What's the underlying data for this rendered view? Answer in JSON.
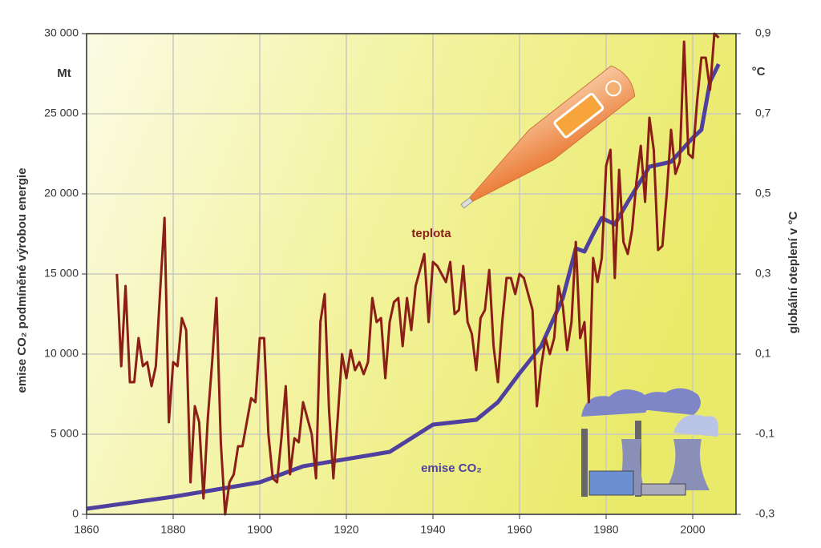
{
  "chart_data": {
    "type": "line",
    "y_label": "emise CO₂ podmíněné výrobou energie",
    "y2_label": "globální oteplení v °C",
    "y_unit": "Mt",
    "y2_unit": "°C",
    "xlim": [
      1860,
      2010
    ],
    "xticks": [
      1860,
      1880,
      1900,
      1920,
      1940,
      1960,
      1980,
      2000
    ],
    "ylim": [
      0,
      30000
    ],
    "yticks": [
      0,
      {
        "value": 5000,
        "label": "5 000"
      },
      {
        "value": 10000,
        "label": "10 000"
      },
      {
        "value": 15000,
        "label": "15 000"
      },
      {
        "value": 20000,
        "label": "20 000"
      },
      {
        "value": 25000,
        "label": "25 000"
      },
      {
        "value": 30000,
        "label": "30 000"
      }
    ],
    "y2lim": [
      -0.3,
      0.9
    ],
    "y2ticks": [
      {
        "value": -0.3,
        "label": "-0,3"
      },
      {
        "value": -0.1,
        "label": "-0,1"
      },
      {
        "value": 0.1,
        "label": "0,1"
      },
      {
        "value": 0.3,
        "label": "0,3"
      },
      {
        "value": 0.5,
        "label": "0,5"
      },
      {
        "value": 0.7,
        "label": "0,7"
      },
      {
        "value": 0.9,
        "label": "0,9"
      }
    ],
    "grid": true,
    "series": [
      {
        "name": "emise CO₂",
        "color": "#4f3f9e",
        "axis": "y",
        "x": [
          1860,
          1880,
          1900,
          1910,
          1930,
          1940,
          1950,
          1955,
          1960,
          1965,
          1970,
          1973,
          1975,
          1977,
          1979,
          1982,
          1985,
          1990,
          1995,
          2000,
          2002,
          2004,
          2006
        ],
        "values": [
          350,
          1100,
          2000,
          3000,
          3900,
          5600,
          5900,
          7000,
          8800,
          10500,
          13500,
          16600,
          16400,
          17500,
          18500,
          18100,
          19500,
          21700,
          22000,
          23500,
          24000,
          27000,
          28100
        ]
      },
      {
        "name": "teplota",
        "color": "#8b1f17",
        "axis": "y2",
        "x": [
          1867,
          1868,
          1869,
          1870,
          1871,
          1872,
          1873,
          1874,
          1875,
          1876,
          1877,
          1878,
          1879,
          1880,
          1881,
          1882,
          1883,
          1884,
          1885,
          1886,
          1887,
          1888,
          1889,
          1890,
          1891,
          1892,
          1893,
          1894,
          1895,
          1896,
          1897,
          1898,
          1899,
          1900,
          1901,
          1902,
          1903,
          1904,
          1905,
          1906,
          1907,
          1908,
          1909,
          1910,
          1911,
          1912,
          1913,
          1914,
          1915,
          1916,
          1917,
          1918,
          1919,
          1920,
          1921,
          1922,
          1923,
          1924,
          1925,
          1926,
          1927,
          1928,
          1929,
          1930,
          1931,
          1932,
          1933,
          1934,
          1935,
          1936,
          1937,
          1938,
          1939,
          1940,
          1941,
          1942,
          1943,
          1944,
          1945,
          1946,
          1947,
          1948,
          1949,
          1950,
          1951,
          1952,
          1953,
          1954,
          1955,
          1956,
          1957,
          1958,
          1959,
          1960,
          1961,
          1962,
          1963,
          1964,
          1965,
          1966,
          1967,
          1968,
          1969,
          1970,
          1971,
          1972,
          1973,
          1974,
          1975,
          1976,
          1977,
          1978,
          1979,
          1980,
          1981,
          1982,
          1983,
          1984,
          1985,
          1986,
          1987,
          1988,
          1989,
          1990,
          1991,
          1992,
          1993,
          1994,
          1995,
          1996,
          1997,
          1998,
          1999,
          2000,
          2001,
          2002,
          2003,
          2004,
          2005,
          2006
        ],
        "values": [
          0.3,
          0.07,
          0.27,
          0.03,
          0.03,
          0.14,
          0.07,
          0.08,
          0.02,
          0.07,
          0.26,
          0.44,
          -0.07,
          0.08,
          0.07,
          0.19,
          0.16,
          -0.22,
          -0.03,
          -0.07,
          -0.26,
          -0.06,
          0.08,
          0.24,
          -0.12,
          -0.3,
          -0.22,
          -0.2,
          -0.13,
          -0.13,
          -0.07,
          -0.01,
          -0.02,
          0.14,
          0.14,
          -0.1,
          -0.21,
          -0.22,
          -0.11,
          0.02,
          -0.2,
          -0.11,
          -0.12,
          -0.02,
          -0.06,
          -0.1,
          -0.21,
          0.18,
          0.25,
          -0.04,
          -0.21,
          -0.06,
          0.1,
          0.04,
          0.11,
          0.06,
          0.08,
          0.05,
          0.08,
          0.24,
          0.18,
          0.19,
          0.04,
          0.18,
          0.23,
          0.24,
          0.12,
          0.24,
          0.16,
          0.27,
          0.31,
          0.35,
          0.18,
          0.33,
          0.32,
          0.3,
          0.28,
          0.33,
          0.2,
          0.21,
          0.32,
          0.18,
          0.15,
          0.06,
          0.19,
          0.21,
          0.31,
          0.12,
          0.03,
          0.18,
          0.29,
          0.29,
          0.25,
          0.3,
          0.29,
          0.25,
          0.21,
          -0.03,
          0.07,
          0.14,
          0.1,
          0.14,
          0.27,
          0.22,
          0.11,
          0.18,
          0.38,
          0.14,
          0.18,
          -0.02,
          0.34,
          0.28,
          0.34,
          0.57,
          0.61,
          0.29,
          0.56,
          0.38,
          0.35,
          0.41,
          0.53,
          0.62,
          0.48,
          0.69,
          0.61,
          0.36,
          0.37,
          0.5,
          0.66,
          0.55,
          0.58,
          0.88,
          0.6,
          0.59,
          0.73,
          0.84,
          0.84,
          0.76,
          0.9,
          0.89
        ]
      }
    ]
  }
}
